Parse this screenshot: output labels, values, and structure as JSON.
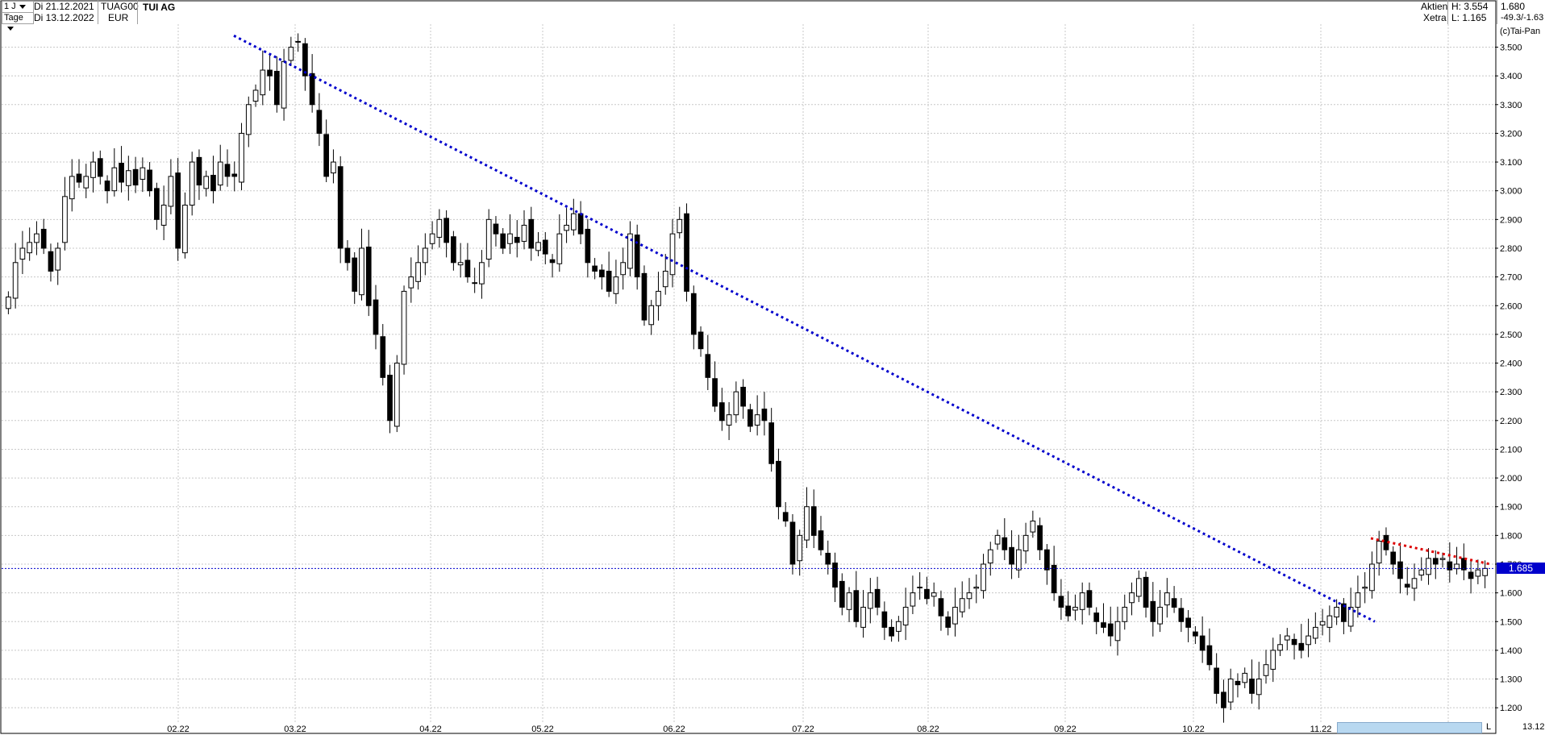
{
  "header": {
    "period_select": "1 J",
    "unit_select": "Tage",
    "date_from": "Di 21.12.2021",
    "date_to": "Di 13.12.2022",
    "symbol": "TUAG00",
    "currency": "EUR",
    "name": "TUI AG",
    "market_type": "Aktien",
    "exchange": "Xetra",
    "high": "H: 3.554",
    "low": "L: 1.165",
    "last": "1.680",
    "change": "-49.3/-1.63",
    "copyright": "(c)Tai-Pan"
  },
  "footer": {
    "end_date": "13.12.22",
    "scroll_label": "L"
  },
  "colors": {
    "grid": "#c8c8c8",
    "trendline_blue": "#0000cc",
    "trendline_red": "#dd0000",
    "price_marker": "#0000cc",
    "candle_up": "#ffffff",
    "candle_down": "#000000"
  },
  "chart_data": {
    "type": "candlestick",
    "ylim": [
      1.15,
      3.58
    ],
    "y_ticks": [
      "3.500",
      "3.400",
      "3.300",
      "3.200",
      "3.100",
      "3.000",
      "2.900",
      "2.800",
      "2.700",
      "2.600",
      "2.500",
      "2.400",
      "2.300",
      "2.200",
      "2.100",
      "2.000",
      "1.900",
      "1.800",
      "1.700",
      "1.600",
      "1.500",
      "1.400",
      "1.300",
      "1.200"
    ],
    "x_ticks": [
      "02.22",
      "03.22",
      "04.22",
      "05.22",
      "06.22",
      "07.22",
      "08.22",
      "09.22",
      "10.22",
      "11.22",
      "12.22"
    ],
    "current_price_label": "1.685",
    "current_price": 1.685,
    "close": [
      2.63,
      2.75,
      2.8,
      2.82,
      2.85,
      2.8,
      2.72,
      2.8,
      2.98,
      3.05,
      3.03,
      3.05,
      3.1,
      3.05,
      3.0,
      3.08,
      3.03,
      3.07,
      3.02,
      3.08,
      3.0,
      2.9,
      2.95,
      3.05,
      2.8,
      2.95,
      3.1,
      3.02,
      3.05,
      3.0,
      3.1,
      3.05,
      3.05,
      3.2,
      3.3,
      3.35,
      3.42,
      3.4,
      3.3,
      3.45,
      3.5,
      3.52,
      3.4,
      3.3,
      3.2,
      3.05,
      3.1,
      2.8,
      2.75,
      2.65,
      2.8,
      2.6,
      2.5,
      2.35,
      2.2,
      2.4,
      2.65,
      2.7,
      2.75,
      2.8,
      2.85,
      2.9,
      2.82,
      2.75,
      2.75,
      2.7,
      2.68,
      2.75,
      2.9,
      2.85,
      2.8,
      2.85,
      2.82,
      2.88,
      2.8,
      2.82,
      2.78,
      2.75,
      2.85,
      2.88,
      2.92,
      2.85,
      2.75,
      2.72,
      2.7,
      2.65,
      2.7,
      2.75,
      2.85,
      2.7,
      2.55,
      2.6,
      2.65,
      2.72,
      2.85,
      2.9,
      2.65,
      2.5,
      2.45,
      2.35,
      2.25,
      2.2,
      2.22,
      2.3,
      2.25,
      2.18,
      2.22,
      2.2,
      2.05,
      1.9,
      1.85,
      1.7,
      1.8,
      1.9,
      1.8,
      1.75,
      1.7,
      1.62,
      1.55,
      1.6,
      1.5,
      1.55,
      1.6,
      1.55,
      1.48,
      1.45,
      1.5,
      1.55,
      1.6,
      1.62,
      1.58,
      1.6,
      1.52,
      1.48,
      1.55,
      1.58,
      1.6,
      1.62,
      1.7,
      1.75,
      1.8,
      1.75,
      1.7,
      1.75,
      1.8,
      1.85,
      1.75,
      1.68,
      1.6,
      1.55,
      1.52,
      1.55,
      1.6,
      1.55,
      1.5,
      1.48,
      1.45,
      1.5,
      1.55,
      1.6,
      1.65,
      1.55,
      1.5,
      1.55,
      1.6,
      1.55,
      1.5,
      1.48,
      1.45,
      1.4,
      1.35,
      1.25,
      1.2,
      1.3,
      1.28,
      1.32,
      1.25,
      1.3,
      1.35,
      1.4,
      1.42,
      1.45,
      1.42,
      1.4,
      1.45,
      1.48,
      1.5,
      1.52,
      1.55,
      1.5,
      1.55,
      1.6,
      1.62,
      1.7,
      1.78,
      1.75,
      1.7,
      1.65,
      1.62,
      1.65,
      1.68,
      1.72,
      1.7,
      1.72,
      1.68,
      1.7,
      1.68,
      1.65,
      1.68,
      1.685
    ]
  },
  "overlays": {
    "trendline_main": {
      "from_index": 40,
      "from_value": 3.54,
      "to_index": 203,
      "to_value": 1.5
    },
    "trendline_recent": {
      "from_index": 188,
      "from_value": 1.79,
      "to_index": 211,
      "to_value": 1.7
    }
  }
}
